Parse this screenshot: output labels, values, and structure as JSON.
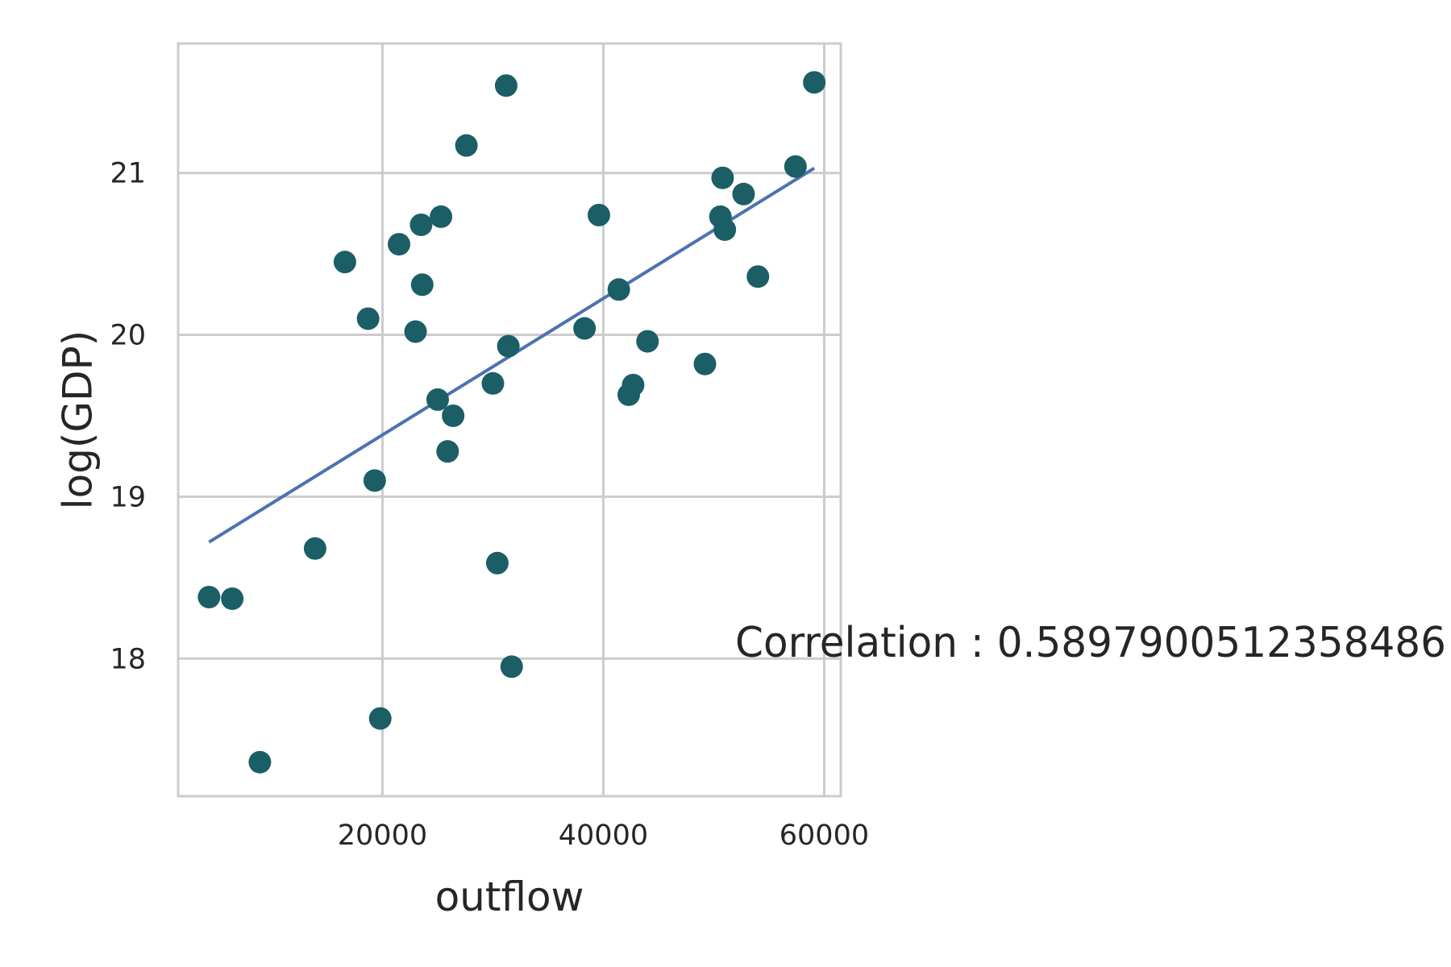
{
  "chart_data": {
    "type": "scatter",
    "title": "",
    "xlabel": "outflow",
    "ylabel": "log(GDP)",
    "xlim": [
      1500,
      61500
    ],
    "ylim": [
      17.15,
      21.8
    ],
    "xticks": [
      20000,
      40000,
      60000
    ],
    "xtick_labels": [
      "20000",
      "40000",
      "60000"
    ],
    "yticks": [
      18,
      19,
      20,
      21
    ],
    "ytick_labels": [
      "18",
      "19",
      "20",
      "21"
    ],
    "grid": true,
    "annotation": "Correlation : 0.5897900512358486",
    "colors": {
      "points": "#1b5e66",
      "fit_line": "#4c72b0",
      "grid": "#cccccc",
      "spine": "#cccccc"
    },
    "series": [
      {
        "kind": "points",
        "x": [
          4300,
          6400,
          8900,
          13900,
          16600,
          18700,
          19300,
          19800,
          21500,
          23000,
          23500,
          23600,
          25000,
          25300,
          25900,
          26400,
          27600,
          30000,
          30400,
          31200,
          31400,
          31700,
          38300,
          39600,
          41400,
          42300,
          42700,
          44000,
          49200,
          50600,
          50800,
          51000,
          52700,
          54000,
          57400,
          59100
        ],
        "y": [
          18.38,
          18.37,
          17.36,
          18.68,
          20.45,
          20.1,
          19.1,
          17.63,
          20.56,
          20.02,
          20.68,
          20.31,
          19.6,
          20.73,
          19.28,
          19.5,
          21.17,
          19.7,
          18.59,
          21.54,
          19.93,
          17.95,
          20.04,
          20.74,
          20.28,
          19.63,
          19.69,
          19.96,
          19.82,
          20.73,
          20.97,
          20.65,
          20.87,
          20.36,
          21.04,
          21.56
        ]
      },
      {
        "kind": "fit-line",
        "x": [
          4300,
          59100
        ],
        "y": [
          18.72,
          21.03
        ]
      }
    ]
  }
}
